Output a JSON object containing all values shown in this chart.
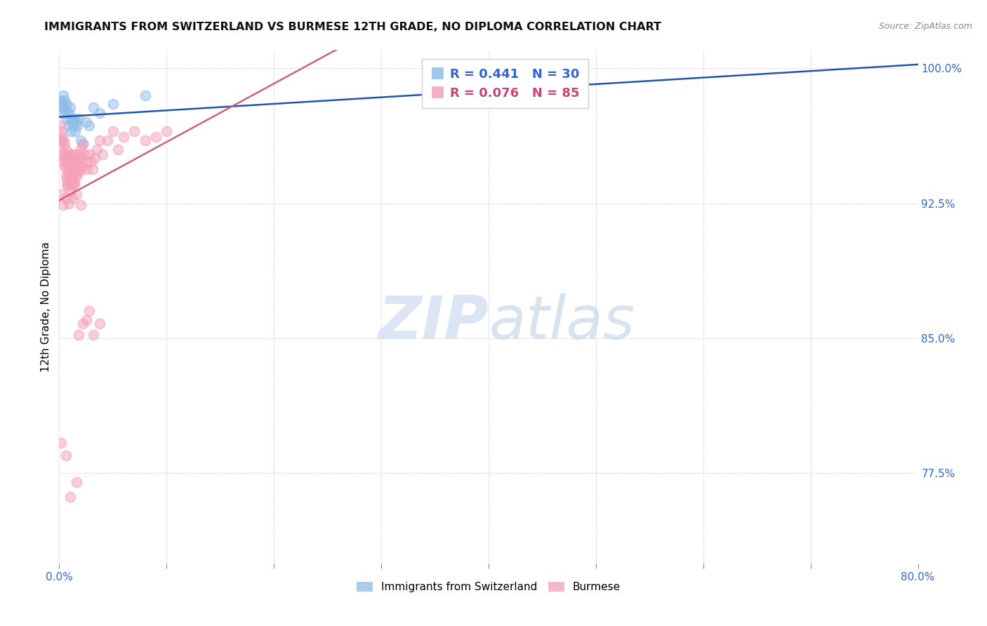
{
  "title": "IMMIGRANTS FROM SWITZERLAND VS BURMESE 12TH GRADE, NO DIPLOMA CORRELATION CHART",
  "source": "Source: ZipAtlas.com",
  "ylabel": "12th Grade, No Diploma",
  "yticks": [
    1.0,
    0.925,
    0.85,
    0.775
  ],
  "ytick_labels": [
    "100.0%",
    "92.5%",
    "85.0%",
    "77.5%"
  ],
  "xmin": 0.0,
  "xmax": 0.8,
  "ymin": 0.725,
  "ymax": 1.01,
  "blue_R": 0.441,
  "blue_N": 30,
  "pink_R": 0.076,
  "pink_N": 85,
  "blue_color": "#90bce8",
  "pink_color": "#f4a0b8",
  "blue_line_color": "#2255aa",
  "pink_line_color": "#d06080",
  "legend_label_blue": "Immigrants from Switzerland",
  "legend_label_pink": "Burmese",
  "blue_x": [
    0.001,
    0.002,
    0.003,
    0.004,
    0.004,
    0.005,
    0.005,
    0.006,
    0.007,
    0.007,
    0.008,
    0.009,
    0.01,
    0.01,
    0.011,
    0.012,
    0.013,
    0.014,
    0.015,
    0.016,
    0.017,
    0.018,
    0.02,
    0.022,
    0.025,
    0.028,
    0.032,
    0.038,
    0.05,
    0.08
  ],
  "blue_y": [
    0.978,
    0.982,
    0.975,
    0.98,
    0.985,
    0.978,
    0.982,
    0.972,
    0.975,
    0.98,
    0.968,
    0.975,
    0.972,
    0.978,
    0.965,
    0.97,
    0.968,
    0.972,
    0.965,
    0.97,
    0.968,
    0.972,
    0.96,
    0.958,
    0.97,
    0.968,
    0.978,
    0.975,
    0.98,
    0.985
  ],
  "pink_x": [
    0.001,
    0.001,
    0.002,
    0.002,
    0.003,
    0.003,
    0.004,
    0.004,
    0.005,
    0.005,
    0.005,
    0.006,
    0.006,
    0.006,
    0.007,
    0.007,
    0.007,
    0.008,
    0.008,
    0.008,
    0.009,
    0.009,
    0.01,
    0.01,
    0.01,
    0.011,
    0.011,
    0.012,
    0.012,
    0.012,
    0.013,
    0.013,
    0.014,
    0.014,
    0.015,
    0.015,
    0.016,
    0.016,
    0.017,
    0.018,
    0.018,
    0.019,
    0.02,
    0.02,
    0.021,
    0.022,
    0.022,
    0.024,
    0.025,
    0.026,
    0.028,
    0.03,
    0.031,
    0.033,
    0.035,
    0.038,
    0.04,
    0.045,
    0.05,
    0.055,
    0.06,
    0.07,
    0.08,
    0.09,
    0.1,
    0.002,
    0.004,
    0.006,
    0.007,
    0.009,
    0.01,
    0.012,
    0.014,
    0.016,
    0.018,
    0.02,
    0.022,
    0.025,
    0.028,
    0.032,
    0.038,
    0.002,
    0.006,
    0.01,
    0.016
  ],
  "pink_y": [
    0.968,
    0.96,
    0.965,
    0.955,
    0.962,
    0.952,
    0.96,
    0.948,
    0.958,
    0.95,
    0.945,
    0.955,
    0.948,
    0.94,
    0.952,
    0.945,
    0.938,
    0.95,
    0.942,
    0.935,
    0.948,
    0.94,
    0.952,
    0.944,
    0.936,
    0.948,
    0.94,
    0.952,
    0.942,
    0.935,
    0.948,
    0.938,
    0.944,
    0.936,
    0.952,
    0.942,
    0.948,
    0.94,
    0.944,
    0.952,
    0.942,
    0.948,
    0.955,
    0.944,
    0.95,
    0.958,
    0.945,
    0.952,
    0.948,
    0.944,
    0.952,
    0.948,
    0.944,
    0.95,
    0.955,
    0.96,
    0.952,
    0.96,
    0.965,
    0.955,
    0.962,
    0.965,
    0.96,
    0.962,
    0.965,
    0.93,
    0.924,
    0.928,
    0.935,
    0.925,
    0.932,
    0.928,
    0.936,
    0.93,
    0.852,
    0.924,
    0.858,
    0.86,
    0.865,
    0.852,
    0.858,
    0.792,
    0.785,
    0.762,
    0.77
  ],
  "watermark_zip": "ZIP",
  "watermark_atlas": "atlas",
  "marker_size": 100,
  "marker_alpha": 0.5,
  "marker_linewidth": 1.5
}
